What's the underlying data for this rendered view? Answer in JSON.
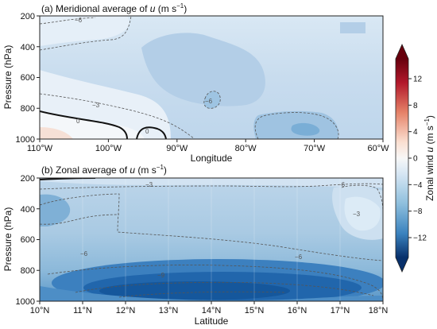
{
  "chart_data": [
    {
      "type": "heatmap",
      "panel": "a",
      "title_main": "(a) Meridional average of ",
      "title_var": "u",
      "title_unit": " (m s",
      "title_exp": "−1",
      "title_close": ")",
      "xlabel": "Longitude",
      "ylabel": "Pressure (hPa)",
      "x_ticks": [
        "110°W",
        "100°W",
        "90°W",
        "80°W",
        "70°W",
        "60°W"
      ],
      "y_ticks": [
        "200",
        "400",
        "600",
        "800",
        "1000"
      ],
      "xlim": [
        -110,
        -60
      ],
      "ylim": [
        1000,
        200
      ],
      "contour_labels": [
        "−6",
        "−6",
        "−3",
        "0",
        "0",
        "−6"
      ],
      "regions": [
        {
          "value": -3,
          "desc": "upper left"
        },
        {
          "value": -6,
          "desc": "broad interior"
        },
        {
          "value": -8,
          "desc": "central low-level patch"
        },
        {
          "value": -9,
          "desc": "near 72°W 950 hPa"
        },
        {
          "value": 1,
          "desc": "near 110°W 1000 hPa"
        }
      ]
    },
    {
      "type": "heatmap",
      "panel": "b",
      "title_main": "(b) Zonal average of ",
      "title_var": "u",
      "title_unit": " (m s",
      "title_exp": "−1",
      "title_close": ")",
      "xlabel": "Latitude",
      "ylabel": "Pressure (hPa)",
      "x_ticks": [
        "10°N",
        "11°N",
        "12°N",
        "13°N",
        "14°N",
        "15°N",
        "16°N",
        "17°N",
        "18°N"
      ],
      "y_ticks": [
        "200",
        "400",
        "600",
        "800",
        "1000"
      ],
      "xlim": [
        10,
        18
      ],
      "ylim": [
        1000,
        200
      ],
      "contour_labels": [
        "−3",
        "−6",
        "−3",
        "−6",
        "−6",
        "−9"
      ],
      "regions": [
        {
          "value": -6,
          "desc": "mid levels"
        },
        {
          "value": -9,
          "desc": "400 hPa near 10°N"
        },
        {
          "value": -3,
          "desc": "upper right"
        },
        {
          "value": -14,
          "desc": "low-level jet near 13°N 950 hPa"
        }
      ]
    }
  ],
  "colorbar": {
    "label_main": "Zonal wind ",
    "label_var": "u",
    "label_unit": " (m s",
    "label_exp": "−1",
    "label_close": ")",
    "ticks": [
      "12",
      "8",
      "4",
      "0",
      "−4",
      "−8",
      "−12"
    ],
    "range": [
      -15,
      15
    ],
    "colors": {
      "negative": "#08306b",
      "positive": "#67000d",
      "zero": "#f7f7f7"
    }
  }
}
